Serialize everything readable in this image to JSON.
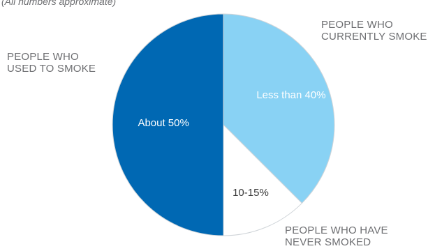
{
  "note": "(All numbers approximate)",
  "labels": {
    "used_to_smoke": [
      "PEOPLE WHO",
      "USED TO SMOKE"
    ],
    "currently_smoke": [
      "PEOPLE WHO",
      "CURRENTLY SMOKE"
    ],
    "never_smoked": [
      "PEOPLE WHO HAVE",
      "NEVER SMOKED"
    ]
  },
  "chart_data": {
    "type": "pie",
    "title": "",
    "start": "12 o'clock",
    "direction": "clockwise",
    "slices": [
      {
        "label": "PEOPLE WHO CURRENTLY SMOKE",
        "value": 37.5,
        "data_label": "Less than 40%",
        "color": "#89d2f4",
        "label_color": "#ffffff"
      },
      {
        "label": "PEOPLE WHO HAVE NEVER SMOKED",
        "value": 12.5,
        "data_label": "10-15%",
        "color": "#ffffff",
        "label_color": "#3a3a3a"
      },
      {
        "label": "PEOPLE WHO USED TO SMOKE",
        "value": 50,
        "data_label": "About 50%",
        "color": "#0068b3",
        "label_color": "#ffffff"
      }
    ],
    "legend": "none",
    "slice_border_color": "#cfd4d8"
  }
}
